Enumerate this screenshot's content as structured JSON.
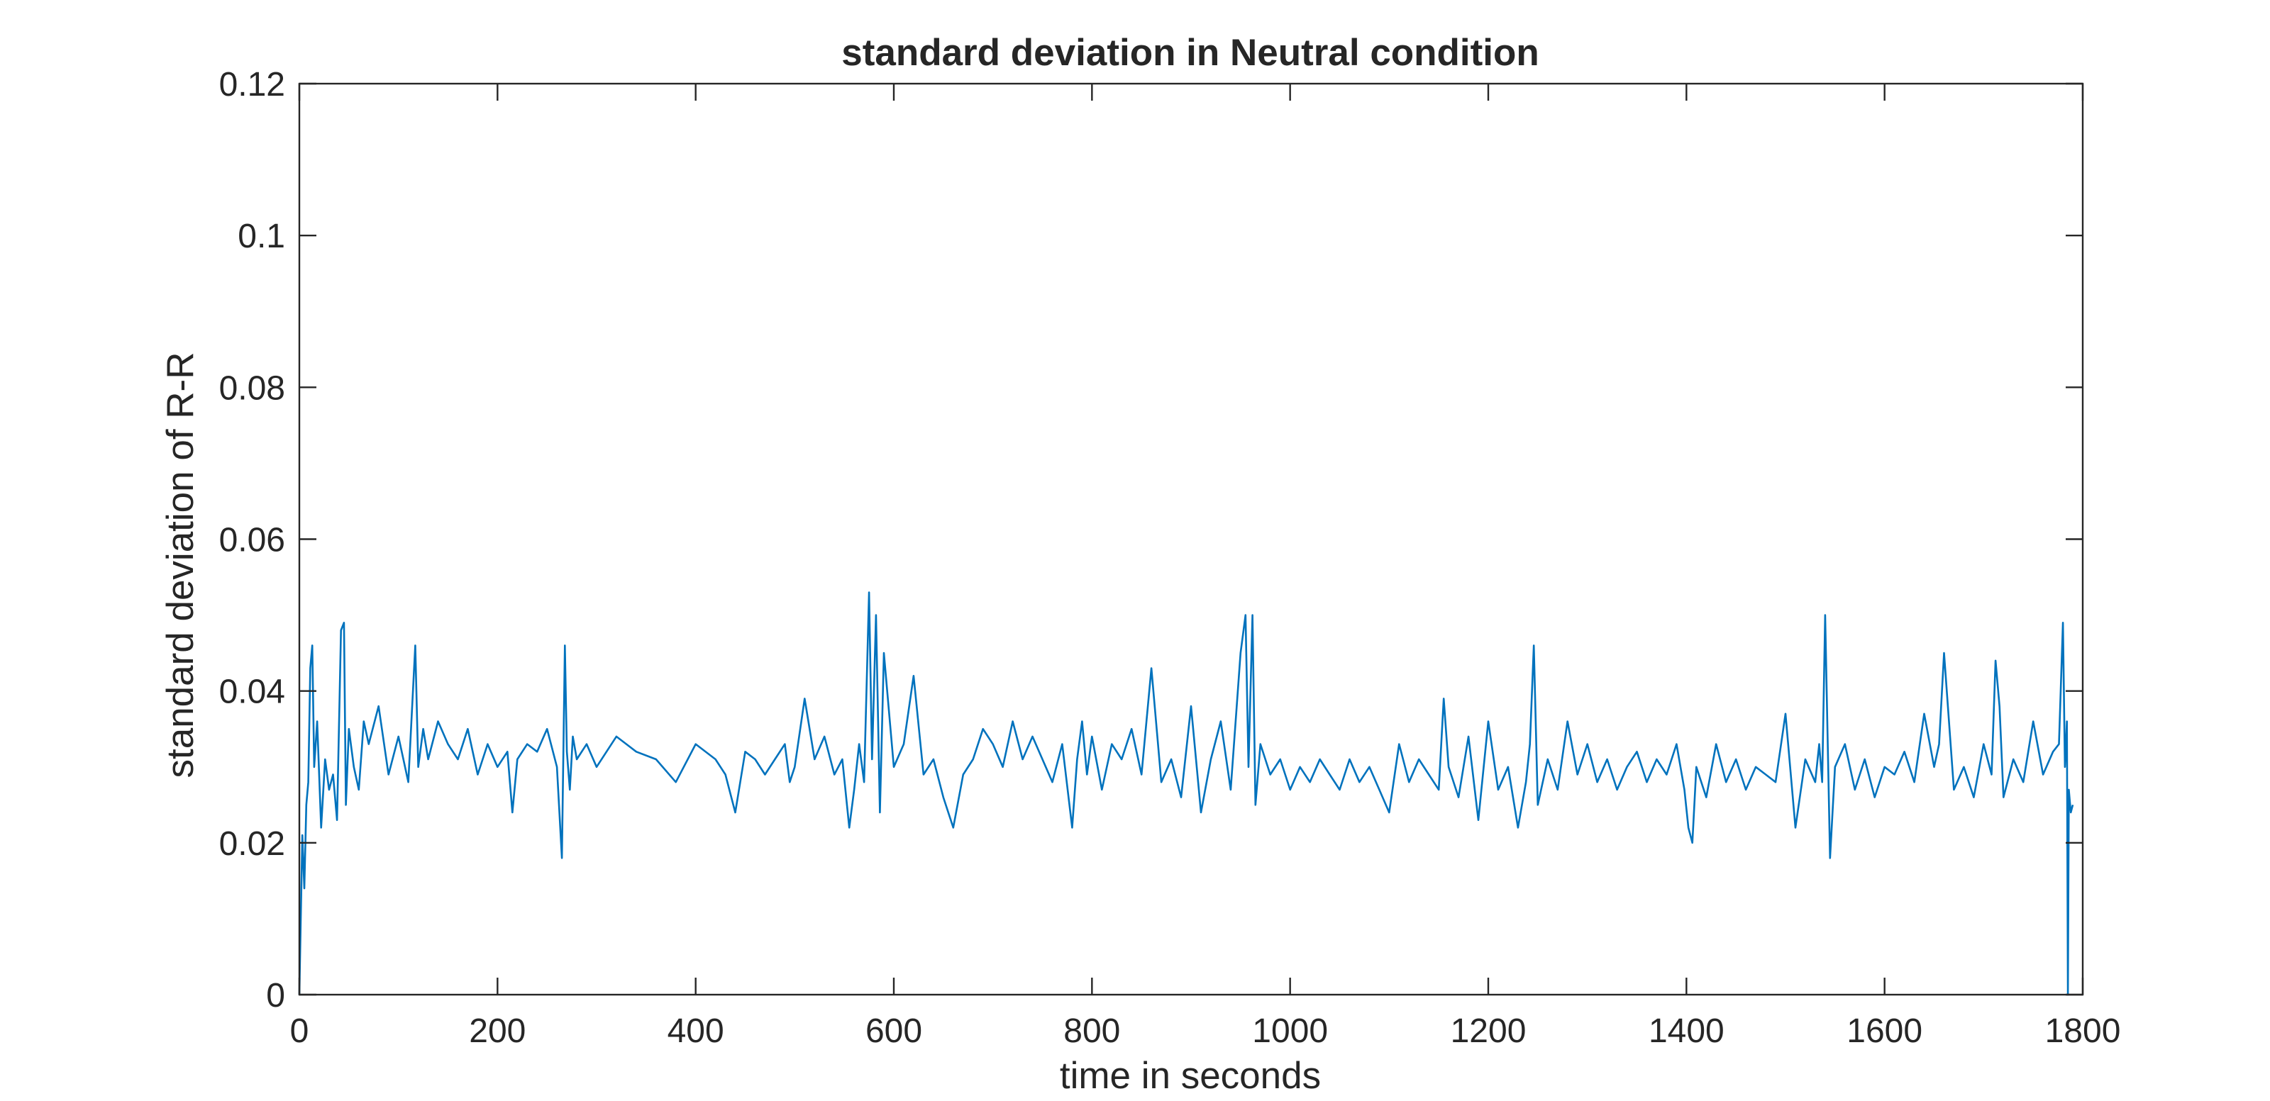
{
  "colors": {
    "line": "#0072BD",
    "axis": "#262626",
    "background": "#ffffff"
  },
  "chart_data": {
    "type": "line",
    "title": "standard deviation in Neutral condition",
    "xlabel": "time in seconds",
    "ylabel": "standard deviation of R-R",
    "xlim": [
      0,
      1800
    ],
    "ylim": [
      0,
      0.12
    ],
    "xticks": [
      "0",
      "200",
      "400",
      "600",
      "800",
      "1000",
      "1200",
      "1400",
      "1600",
      "1800"
    ],
    "yticks": [
      "0",
      "0.02",
      "0.04",
      "0.06",
      "0.08",
      "0.1",
      "0.12"
    ],
    "grid": false,
    "box": true,
    "series": [
      {
        "x": [
          0,
          3,
          5,
          7,
          9,
          11,
          13,
          15,
          18,
          22,
          26,
          30,
          34,
          38,
          42,
          45,
          47,
          50,
          55,
          60,
          65,
          70,
          80,
          90,
          100,
          110,
          117,
          120,
          125,
          130,
          140,
          150,
          160,
          170,
          180,
          190,
          200,
          210,
          215,
          220,
          230,
          240,
          250,
          260,
          265,
          268,
          270,
          273,
          276,
          280,
          290,
          300,
          320,
          340,
          360,
          380,
          400,
          420,
          430,
          440,
          450,
          460,
          470,
          480,
          490,
          495,
          500,
          510,
          520,
          530,
          540,
          548,
          555,
          560,
          565,
          570,
          575,
          578,
          582,
          586,
          590,
          600,
          610,
          620,
          630,
          640,
          650,
          660,
          670,
          680,
          690,
          700,
          710,
          720,
          730,
          740,
          750,
          760,
          770,
          780,
          785,
          790,
          795,
          800,
          810,
          820,
          830,
          840,
          850,
          860,
          870,
          880,
          890,
          900,
          910,
          920,
          930,
          940,
          950,
          955,
          958,
          962,
          965,
          970,
          980,
          990,
          1000,
          1010,
          1020,
          1030,
          1040,
          1050,
          1060,
          1070,
          1080,
          1090,
          1100,
          1110,
          1120,
          1130,
          1140,
          1150,
          1155,
          1160,
          1170,
          1180,
          1190,
          1200,
          1210,
          1220,
          1230,
          1238,
          1242,
          1246,
          1250,
          1260,
          1270,
          1280,
          1290,
          1300,
          1310,
          1320,
          1330,
          1340,
          1350,
          1360,
          1370,
          1380,
          1390,
          1398,
          1402,
          1406,
          1410,
          1420,
          1430,
          1440,
          1450,
          1460,
          1470,
          1480,
          1490,
          1500,
          1510,
          1520,
          1530,
          1534,
          1537,
          1540,
          1545,
          1550,
          1560,
          1570,
          1580,
          1590,
          1600,
          1610,
          1620,
          1630,
          1640,
          1650,
          1655,
          1660,
          1670,
          1680,
          1690,
          1700,
          1708,
          1712,
          1716,
          1720,
          1730,
          1740,
          1750,
          1760,
          1770,
          1776,
          1780,
          1782,
          1784,
          1785,
          1786,
          1788,
          1790
        ],
        "y": [
          0,
          0.021,
          0.014,
          0.025,
          0.028,
          0.043,
          0.046,
          0.03,
          0.036,
          0.022,
          0.031,
          0.027,
          0.029,
          0.023,
          0.048,
          0.049,
          0.025,
          0.035,
          0.03,
          0.027,
          0.036,
          0.033,
          0.038,
          0.029,
          0.034,
          0.028,
          0.046,
          0.03,
          0.035,
          0.031,
          0.036,
          0.033,
          0.031,
          0.035,
          0.029,
          0.033,
          0.03,
          0.032,
          0.024,
          0.031,
          0.033,
          0.032,
          0.035,
          0.03,
          0.018,
          0.046,
          0.032,
          0.027,
          0.034,
          0.031,
          0.033,
          0.03,
          0.034,
          0.032,
          0.031,
          0.028,
          0.033,
          0.031,
          0.029,
          0.024,
          0.032,
          0.031,
          0.029,
          0.031,
          0.033,
          0.028,
          0.03,
          0.039,
          0.031,
          0.034,
          0.029,
          0.031,
          0.022,
          0.027,
          0.033,
          0.028,
          0.053,
          0.031,
          0.05,
          0.024,
          0.045,
          0.03,
          0.033,
          0.042,
          0.029,
          0.031,
          0.026,
          0.022,
          0.029,
          0.031,
          0.035,
          0.033,
          0.03,
          0.036,
          0.031,
          0.034,
          0.031,
          0.028,
          0.033,
          0.022,
          0.031,
          0.036,
          0.029,
          0.034,
          0.027,
          0.033,
          0.031,
          0.035,
          0.029,
          0.043,
          0.028,
          0.031,
          0.026,
          0.038,
          0.024,
          0.031,
          0.036,
          0.027,
          0.045,
          0.05,
          0.03,
          0.05,
          0.025,
          0.033,
          0.029,
          0.031,
          0.027,
          0.03,
          0.028,
          0.031,
          0.029,
          0.027,
          0.031,
          0.028,
          0.03,
          0.027,
          0.024,
          0.033,
          0.028,
          0.031,
          0.029,
          0.027,
          0.039,
          0.03,
          0.026,
          0.034,
          0.023,
          0.036,
          0.027,
          0.03,
          0.022,
          0.028,
          0.033,
          0.046,
          0.025,
          0.031,
          0.027,
          0.036,
          0.029,
          0.033,
          0.028,
          0.031,
          0.027,
          0.03,
          0.032,
          0.028,
          0.031,
          0.029,
          0.033,
          0.027,
          0.022,
          0.02,
          0.03,
          0.026,
          0.033,
          0.028,
          0.031,
          0.027,
          0.03,
          0.029,
          0.028,
          0.037,
          0.022,
          0.031,
          0.028,
          0.033,
          0.028,
          0.05,
          0.018,
          0.03,
          0.033,
          0.027,
          0.031,
          0.026,
          0.03,
          0.029,
          0.032,
          0.028,
          0.037,
          0.03,
          0.033,
          0.045,
          0.027,
          0.03,
          0.026,
          0.033,
          0.029,
          0.044,
          0.038,
          0.026,
          0.031,
          0.028,
          0.036,
          0.029,
          0.032,
          0.033,
          0.049,
          0.03,
          0.036,
          0,
          0.027,
          0.024,
          0.025
        ]
      }
    ]
  }
}
